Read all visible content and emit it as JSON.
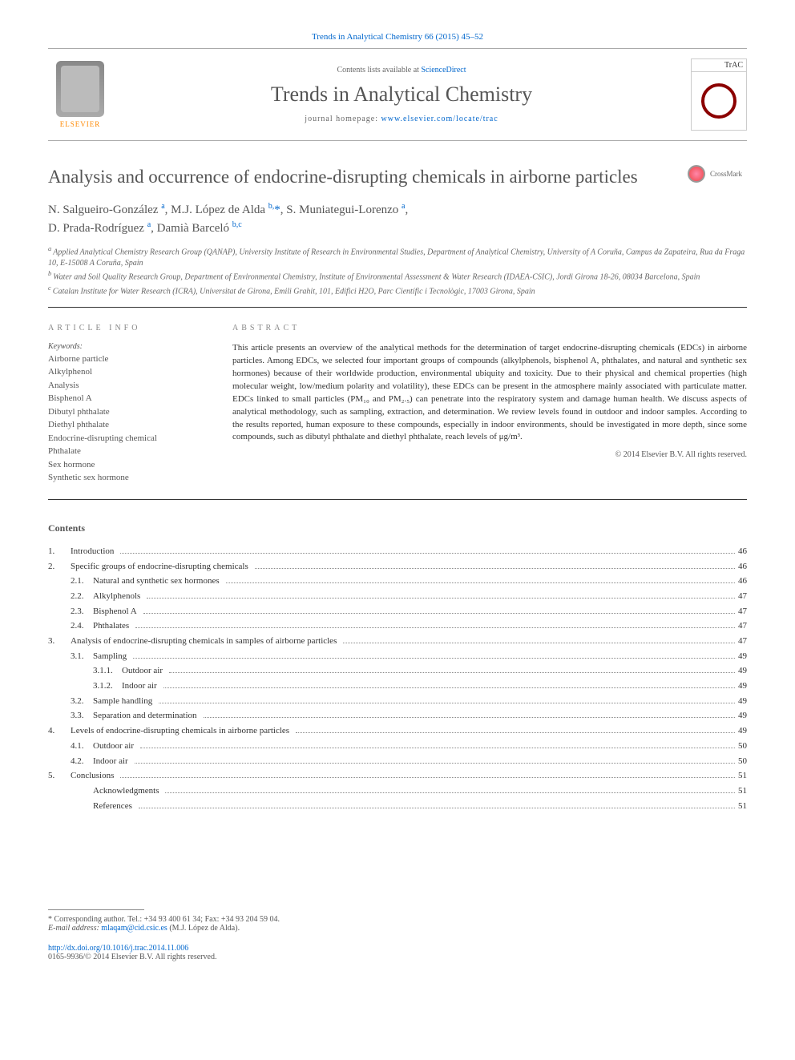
{
  "header": {
    "citation_link": "Trends in Analytical Chemistry 66 (2015) 45–52",
    "contents_available": "Contents lists available at",
    "contents_link": "ScienceDirect",
    "journal_name": "Trends in Analytical Chemistry",
    "homepage_prefix": "journal homepage:",
    "homepage_url": "www.elsevier.com/locate/trac",
    "publisher_logo_text": "ELSEVIER",
    "journal_logo_text": "TrAC",
    "crossmark_label": "CrossMark"
  },
  "article": {
    "title": "Analysis and occurrence of endocrine-disrupting chemicals in airborne particles",
    "authors_html": "N. Salgueiro-González <sup>a</sup>, M.J. López de Alda <sup>b,</sup>*, S. Muniategui-Lorenzo <sup>a</sup>, D. Prada-Rodríguez <sup>a</sup>, Damià Barceló <sup>b,c</sup>",
    "affiliations": [
      "a Applied Analytical Chemistry Research Group (QANAP), University Institute of Research in Environmental Studies, Department of Analytical Chemistry, University of A Coruña, Campus da Zapateira, Rua da Fraga 10, E-15008 A Coruña, Spain",
      "b Water and Soil Quality Research Group, Department of Environmental Chemistry, Institute of Environmental Assessment & Water Research (IDAEA-CSIC), Jordi Girona 18-26, 08034 Barcelona, Spain",
      "c Catalan Institute for Water Research (ICRA), Universitat de Girona, Emili Grahit, 101, Edifici H2O, Parc Científic i Tecnològic, 17003 Girona, Spain"
    ]
  },
  "article_info": {
    "heading": "ARTICLE INFO",
    "keywords_label": "Keywords:",
    "keywords": [
      "Airborne particle",
      "Alkylphenol",
      "Analysis",
      "Bisphenol A",
      "Dibutyl phthalate",
      "Diethyl phthalate",
      "Endocrine-disrupting chemical",
      "Phthalate",
      "Sex hormone",
      "Synthetic sex hormone"
    ]
  },
  "abstract": {
    "heading": "ABSTRACT",
    "text": "This article presents an overview of the analytical methods for the determination of target endocrine-disrupting chemicals (EDCs) in airborne particles. Among EDCs, we selected four important groups of compounds (alkylphenols, bisphenol A, phthalates, and natural and synthetic sex hormones) because of their worldwide production, environmental ubiquity and toxicity. Due to their physical and chemical properties (high molecular weight, low/medium polarity and volatility), these EDCs can be present in the atmosphere mainly associated with particulate matter. EDCs linked to small particles (PM₁₀ and PM₂.₅) can penetrate into the respiratory system and damage human health. We discuss aspects of analytical methodology, such as sampling, extraction, and determination. We review levels found in outdoor and indoor samples. According to the results reported, human exposure to these compounds, especially in indoor environments, should be investigated in more depth, since some compounds, such as dibutyl phthalate and diethyl phthalate, reach levels of μg/m³.",
    "copyright": "© 2014 Elsevier B.V. All rights reserved."
  },
  "contents": {
    "heading": "Contents",
    "items": [
      {
        "level": 0,
        "num": "1.",
        "title": "Introduction",
        "page": "46"
      },
      {
        "level": 0,
        "num": "2.",
        "title": "Specific groups of endocrine-disrupting chemicals",
        "page": "46"
      },
      {
        "level": 1,
        "num": "2.1.",
        "title": "Natural and synthetic sex hormones",
        "page": "46"
      },
      {
        "level": 1,
        "num": "2.2.",
        "title": "Alkylphenols",
        "page": "47"
      },
      {
        "level": 1,
        "num": "2.3.",
        "title": "Bisphenol A",
        "page": "47"
      },
      {
        "level": 1,
        "num": "2.4.",
        "title": "Phthalates",
        "page": "47"
      },
      {
        "level": 0,
        "num": "3.",
        "title": "Analysis of endocrine-disrupting chemicals in samples of airborne particles",
        "page": "47"
      },
      {
        "level": 1,
        "num": "3.1.",
        "title": "Sampling",
        "page": "49"
      },
      {
        "level": 2,
        "num": "3.1.1.",
        "title": "Outdoor air",
        "page": "49"
      },
      {
        "level": 2,
        "num": "3.1.2.",
        "title": "Indoor air",
        "page": "49"
      },
      {
        "level": 1,
        "num": "3.2.",
        "title": "Sample handling",
        "page": "49"
      },
      {
        "level": 1,
        "num": "3.3.",
        "title": "Separation and determination",
        "page": "49"
      },
      {
        "level": 0,
        "num": "4.",
        "title": "Levels of endocrine-disrupting chemicals in airborne particles",
        "page": "49"
      },
      {
        "level": 1,
        "num": "4.1.",
        "title": "Outdoor air",
        "page": "50"
      },
      {
        "level": 1,
        "num": "4.2.",
        "title": "Indoor air",
        "page": "50"
      },
      {
        "level": 0,
        "num": "5.",
        "title": "Conclusions",
        "page": "51"
      },
      {
        "level": 1,
        "num": "",
        "title": "Acknowledgments",
        "page": "51"
      },
      {
        "level": 1,
        "num": "",
        "title": "References",
        "page": "51"
      }
    ]
  },
  "footer": {
    "corresponding": "* Corresponding author. Tel.: +34 93 400 61 34; Fax: +34 93 204 59 04.",
    "email_label": "E-mail address:",
    "email": "mlaqam@cid.csic.es",
    "email_suffix": "(M.J. López de Alda).",
    "doi": "http://dx.doi.org/10.1016/j.trac.2014.11.006",
    "issn_line": "0165-9936/© 2014 Elsevier B.V. All rights reserved."
  },
  "colors": {
    "link": "#0066cc",
    "text": "#333333",
    "muted": "#666666",
    "rule": "#333333",
    "publisher_orange": "#ff8800",
    "journal_cover_accent": "#8b0000"
  },
  "typography": {
    "title_fontsize": 23,
    "journal_name_fontsize": 26,
    "body_fontsize": 11,
    "small_fontsize": 10
  }
}
